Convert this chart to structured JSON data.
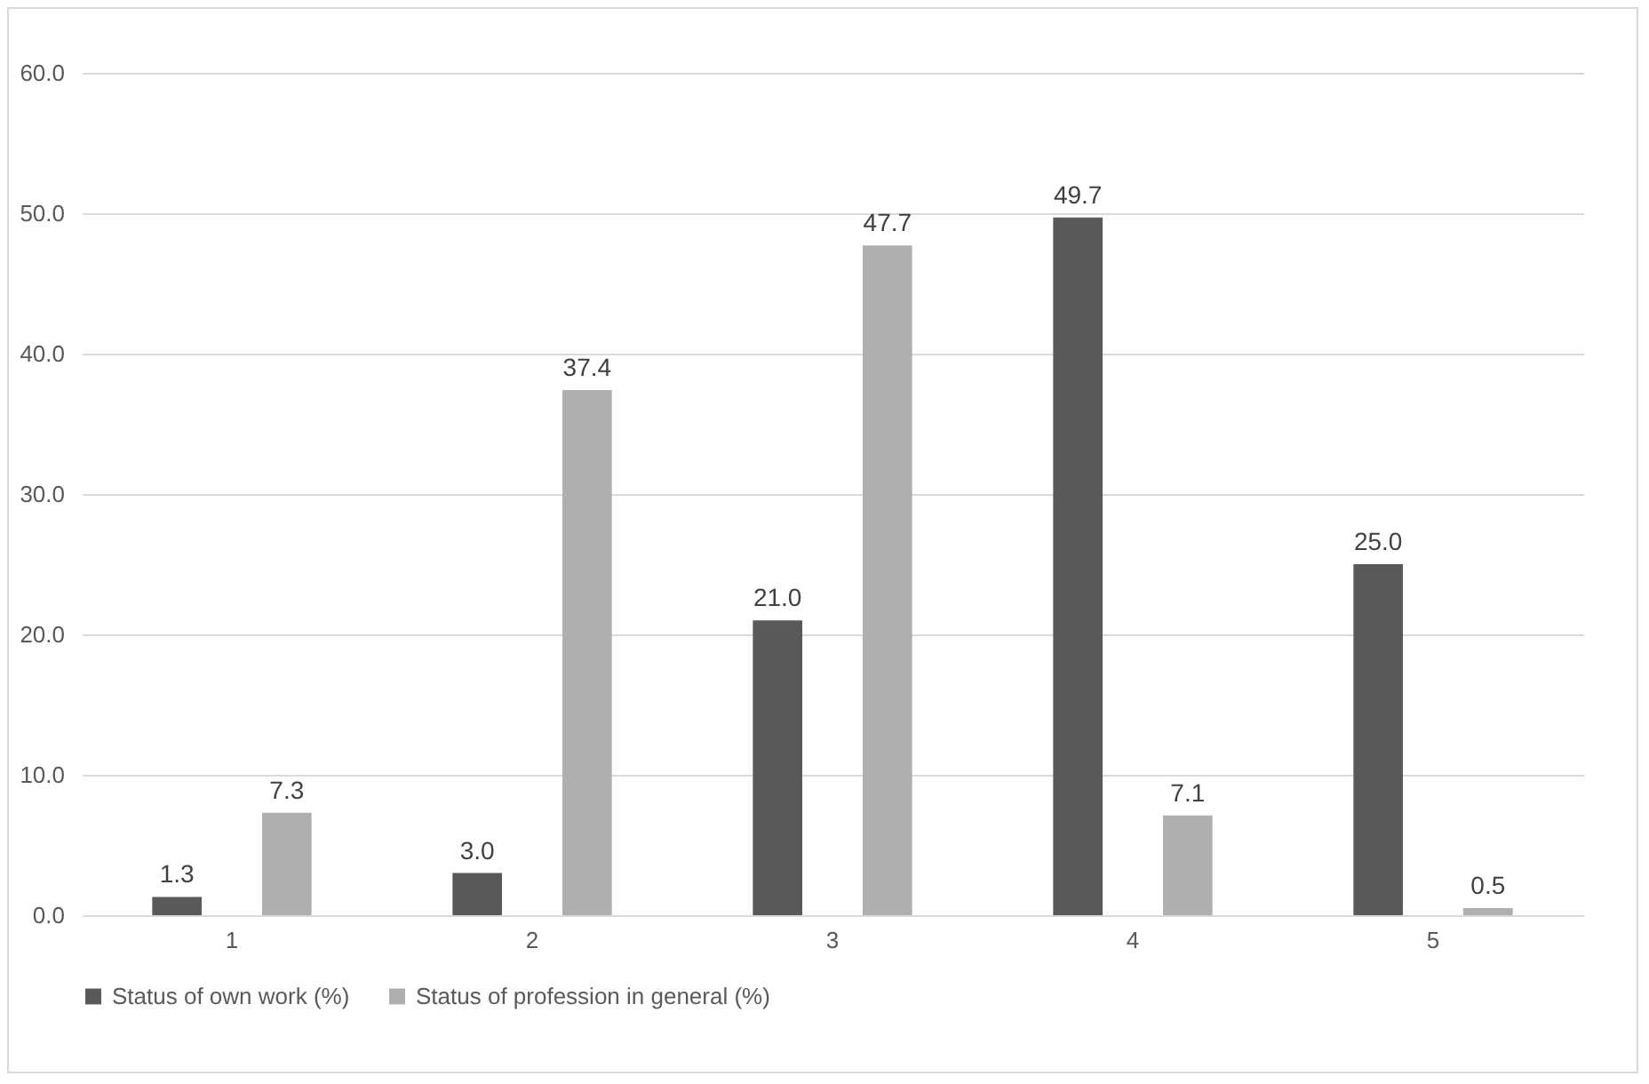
{
  "chart_data": {
    "type": "bar",
    "categories": [
      "1",
      "2",
      "3",
      "4",
      "5"
    ],
    "series": [
      {
        "name": "Status of own work (%)",
        "color": "#595959",
        "values": [
          1.3,
          3.0,
          21.0,
          49.7,
          25.0
        ],
        "value_labels": [
          "1.3",
          "3.0",
          "21.0",
          "49.7",
          "25.0"
        ]
      },
      {
        "name": "Status of profession in general (%)",
        "color": "#afafaf",
        "values": [
          7.3,
          37.4,
          47.7,
          7.1,
          0.5
        ],
        "value_labels": [
          "7.3",
          "37.4",
          "47.7",
          "7.1",
          "0.5"
        ]
      }
    ],
    "ylim": [
      0,
      60
    ],
    "yticks": [
      {
        "value": 0,
        "label": "0.0"
      },
      {
        "value": 10,
        "label": "10.0"
      },
      {
        "value": 20,
        "label": "20.0"
      },
      {
        "value": 30,
        "label": "30.0"
      },
      {
        "value": 40,
        "label": "40.0"
      },
      {
        "value": 50,
        "label": "50.0"
      },
      {
        "value": 60,
        "label": "60.0"
      }
    ],
    "grid": "y",
    "legend": "bottom"
  }
}
